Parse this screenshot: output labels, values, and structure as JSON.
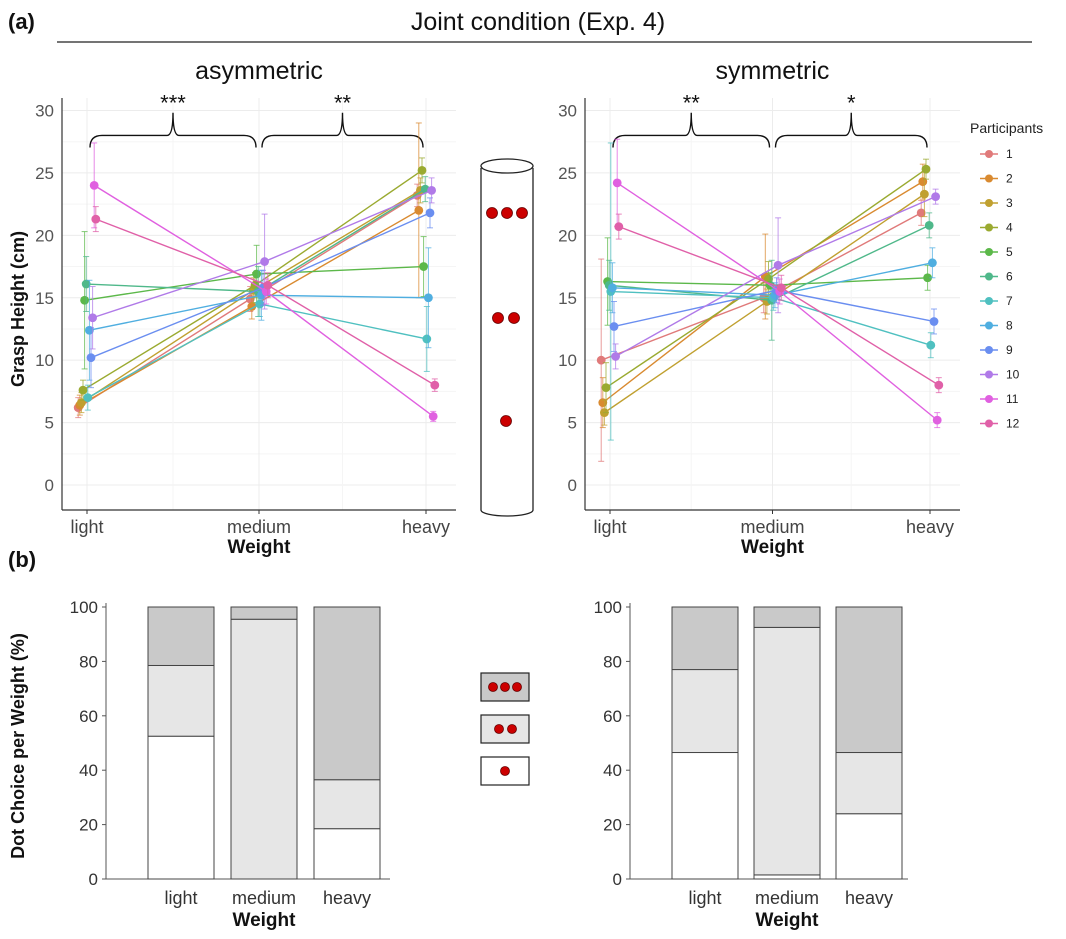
{
  "figure": {
    "panel_a_label": "(a)",
    "panel_b_label": "(b)",
    "title": "Joint condition (Exp. 4)"
  },
  "colors": {
    "dot_red": "#cc0000",
    "bar_top": "#c9c9c9",
    "bar_mid": "#e6e6e6",
    "bar_bottom": "#ffffff",
    "participants": [
      "#e07a7a",
      "#d98a30",
      "#c0a030",
      "#9aaa30",
      "#5cb84a",
      "#4fb88a",
      "#4fc0c0",
      "#4faee0",
      "#6a8ef0",
      "#b07ae8",
      "#e060e0",
      "#e060a8"
    ]
  },
  "legend": {
    "title": "Participants",
    "items": [
      "1",
      "2",
      "3",
      "4",
      "5",
      "6",
      "7",
      "8",
      "9",
      "10",
      "11",
      "12"
    ]
  },
  "chart_data": [
    {
      "type": "line",
      "title": "asymmetric",
      "xlabel": "Weight",
      "ylabel": "Grasp Height (cm)",
      "categories": [
        "light",
        "medium",
        "heavy"
      ],
      "yticks": [
        "0",
        "5",
        "10",
        "15",
        "20",
        "25",
        "30"
      ],
      "ylim": [
        -2,
        31
      ],
      "grid": true,
      "significance": [
        "***",
        "**"
      ],
      "series": [
        {
          "name": "1",
          "values": [
            6.2,
            14.9,
            23.2
          ],
          "err": [
            0.8,
            1.0,
            0.9
          ]
        },
        {
          "name": "2",
          "values": [
            6.4,
            14.3,
            22.0
          ],
          "err": [
            0.8,
            1.0,
            7.0
          ]
        },
        {
          "name": "3",
          "values": [
            6.6,
            15.6,
            23.6
          ],
          "err": [
            0.8,
            1.0,
            1.0
          ]
        },
        {
          "name": "4",
          "values": [
            7.6,
            16.0,
            25.2
          ],
          "err": [
            0.8,
            1.0,
            1.0
          ]
        },
        {
          "name": "5",
          "values": [
            14.8,
            16.9,
            17.5
          ],
          "err": [
            5.5,
            2.3,
            2.4
          ]
        },
        {
          "name": "6",
          "values": [
            16.1,
            15.5,
            23.7
          ],
          "err": [
            2.2,
            2.0,
            1.0
          ]
        },
        {
          "name": "7",
          "values": [
            7.0,
            14.5,
            11.7
          ],
          "err": [
            1.0,
            1.0,
            2.6
          ]
        },
        {
          "name": "8",
          "values": [
            12.4,
            15.2,
            15.0
          ],
          "err": [
            4.0,
            2.0,
            4.0
          ]
        },
        {
          "name": "9",
          "values": [
            10.2,
            15.8,
            21.8
          ],
          "err": [
            2.4,
            1.4,
            1.2
          ]
        },
        {
          "name": "10",
          "values": [
            13.4,
            17.9,
            23.6
          ],
          "err": [
            2.5,
            3.8,
            1.0
          ]
        },
        {
          "name": "11",
          "values": [
            24.0,
            15.5,
            5.5
          ],
          "err": [
            3.4,
            1.0,
            0.4
          ]
        },
        {
          "name": "12",
          "values": [
            21.3,
            16.0,
            8.0
          ],
          "err": [
            1.0,
            1.0,
            0.5
          ]
        }
      ]
    },
    {
      "type": "line",
      "title": "symmetric",
      "xlabel": "Weight",
      "ylabel": "",
      "categories": [
        "light",
        "medium",
        "heavy"
      ],
      "yticks": [
        "0",
        "5",
        "10",
        "15",
        "20",
        "25",
        "30"
      ],
      "ylim": [
        -2,
        31
      ],
      "grid": true,
      "significance": [
        "**",
        "*"
      ],
      "series": [
        {
          "name": "1",
          "values": [
            10.0,
            15.0,
            21.8
          ],
          "err": [
            8.1,
            1.2,
            1.0
          ]
        },
        {
          "name": "2",
          "values": [
            6.6,
            16.7,
            24.3
          ],
          "err": [
            2.0,
            3.4,
            1.4
          ]
        },
        {
          "name": "3",
          "values": [
            5.8,
            14.7,
            23.3
          ],
          "err": [
            1.0,
            1.0,
            1.8
          ]
        },
        {
          "name": "4",
          "values": [
            7.8,
            16.5,
            25.3
          ],
          "err": [
            2.0,
            1.4,
            0.8
          ]
        },
        {
          "name": "5",
          "values": [
            16.3,
            16.0,
            16.6
          ],
          "err": [
            3.5,
            1.0,
            1.0
          ]
        },
        {
          "name": "6",
          "values": [
            16.0,
            14.8,
            20.8
          ],
          "err": [
            2.0,
            3.2,
            1.0
          ]
        },
        {
          "name": "7",
          "values": [
            15.5,
            15.0,
            11.2
          ],
          "err": [
            11.9,
            1.0,
            1.0
          ]
        },
        {
          "name": "8",
          "values": [
            15.8,
            15.2,
            17.8
          ],
          "err": [
            2.0,
            1.0,
            1.2
          ]
        },
        {
          "name": "9",
          "values": [
            12.7,
            15.6,
            13.1
          ],
          "err": [
            2.0,
            1.0,
            1.0
          ]
        },
        {
          "name": "10",
          "values": [
            10.3,
            17.6,
            23.1
          ],
          "err": [
            1.0,
            3.8,
            0.6
          ]
        },
        {
          "name": "11",
          "values": [
            24.2,
            15.5,
            5.2
          ],
          "err": [
            3.5,
            1.0,
            0.6
          ]
        },
        {
          "name": "12",
          "values": [
            20.7,
            15.8,
            8.0
          ],
          "err": [
            1.0,
            1.0,
            0.6
          ]
        }
      ]
    },
    {
      "type": "bar",
      "title": "",
      "xlabel": "Weight",
      "ylabel": "Dot Choice per Weight (%)",
      "categories": [
        "light",
        "medium",
        "heavy"
      ],
      "yticks": [
        "0",
        "20",
        "40",
        "60",
        "80",
        "100"
      ],
      "ylim": [
        0,
        100
      ],
      "stacked": true,
      "series": [
        {
          "name": "1 dot",
          "values": [
            52.5,
            0.0,
            18.5
          ]
        },
        {
          "name": "2 dots",
          "values": [
            26.0,
            95.5,
            18.0
          ]
        },
        {
          "name": "3 dots",
          "values": [
            21.5,
            4.5,
            63.5
          ]
        }
      ]
    },
    {
      "type": "bar",
      "title": "",
      "xlabel": "Weight",
      "ylabel": "",
      "categories": [
        "light",
        "medium",
        "heavy"
      ],
      "yticks": [
        "0",
        "20",
        "40",
        "60",
        "80",
        "100"
      ],
      "ylim": [
        0,
        100
      ],
      "stacked": true,
      "series": [
        {
          "name": "1 dot",
          "values": [
            46.5,
            1.5,
            24.0
          ]
        },
        {
          "name": "2 dots",
          "values": [
            30.5,
            91.0,
            22.5
          ]
        },
        {
          "name": "3 dots",
          "values": [
            23.0,
            7.5,
            53.5
          ]
        }
      ]
    }
  ]
}
